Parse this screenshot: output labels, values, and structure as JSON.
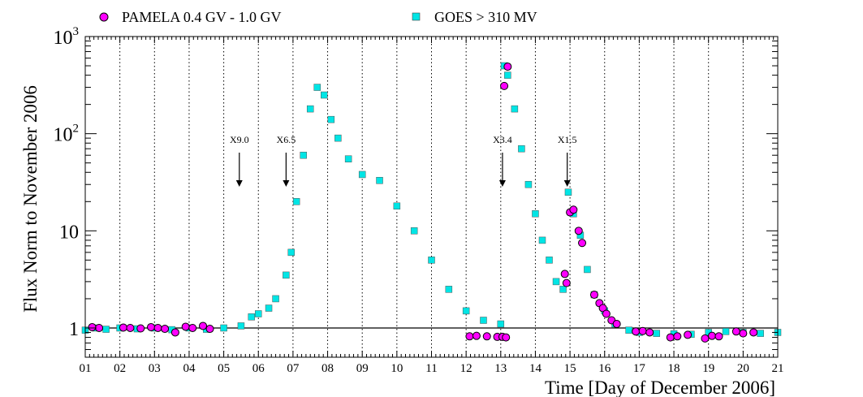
{
  "chart_data": {
    "type": "scatter",
    "xlabel": "Time [Day of December 2006]",
    "ylabel": "Flux Norm to November 2006",
    "yscale": "log",
    "xlim": [
      1,
      21
    ],
    "ylim": [
      0.5,
      1000
    ],
    "x_tick_labels": [
      "01",
      "02",
      "03",
      "04",
      "05",
      "06",
      "07",
      "08",
      "09",
      "10",
      "11",
      "12",
      "13",
      "14",
      "15",
      "16",
      "17",
      "18",
      "19",
      "20",
      "21"
    ],
    "y_tick_labels": [
      {
        "value": 1,
        "label": "1"
      },
      {
        "value": 10,
        "label": "10"
      },
      {
        "value": 100,
        "base": "10",
        "exp": "2"
      },
      {
        "value": 1000,
        "base": "10",
        "exp": "3"
      }
    ],
    "reference_line": 1,
    "legend": [
      {
        "label": "PAMELA 0.4 GV - 1.0 GV",
        "marker": "circle",
        "color": "#ff00ff"
      },
      {
        "label": "GOES > 310 MV",
        "marker": "square",
        "color": "#00e5e5"
      }
    ],
    "annotations": [
      {
        "label": "X9.0",
        "x": 5.45
      },
      {
        "label": "X6.5",
        "x": 6.8
      },
      {
        "label": "X3.4",
        "x": 13.05
      },
      {
        "label": "X1.5",
        "x": 14.92
      }
    ],
    "series": [
      {
        "name": "GOES > 310 MV",
        "marker": "square",
        "points": [
          [
            1.0,
            0.95
          ],
          [
            1.3,
            1.0
          ],
          [
            1.6,
            0.97
          ],
          [
            2.0,
            1.0
          ],
          [
            2.5,
            0.98
          ],
          [
            3.0,
            1.0
          ],
          [
            3.5,
            0.96
          ],
          [
            4.0,
            1.0
          ],
          [
            4.5,
            0.97
          ],
          [
            5.0,
            1.0
          ],
          [
            5.5,
            1.05
          ],
          [
            5.8,
            1.3
          ],
          [
            6.0,
            1.4
          ],
          [
            6.3,
            1.6
          ],
          [
            6.5,
            2.0
          ],
          [
            6.8,
            3.5
          ],
          [
            6.95,
            6.0
          ],
          [
            7.1,
            20
          ],
          [
            7.3,
            60
          ],
          [
            7.5,
            180
          ],
          [
            7.7,
            300
          ],
          [
            7.9,
            250
          ],
          [
            8.1,
            140
          ],
          [
            8.3,
            90
          ],
          [
            8.6,
            55
          ],
          [
            9.0,
            38
          ],
          [
            9.5,
            33
          ],
          [
            10.0,
            18
          ],
          [
            10.5,
            10
          ],
          [
            11.0,
            5
          ],
          [
            11.5,
            2.5
          ],
          [
            12.0,
            1.5
          ],
          [
            12.5,
            1.2
          ],
          [
            13.0,
            1.1
          ],
          [
            13.1,
            500
          ],
          [
            13.2,
            400
          ],
          [
            13.4,
            180
          ],
          [
            13.6,
            70
          ],
          [
            13.8,
            30
          ],
          [
            14.0,
            15
          ],
          [
            14.2,
            8
          ],
          [
            14.4,
            5
          ],
          [
            14.6,
            3
          ],
          [
            14.8,
            2.5
          ],
          [
            14.95,
            25
          ],
          [
            15.1,
            15
          ],
          [
            15.3,
            9
          ],
          [
            15.5,
            4
          ],
          [
            15.7,
            2.2
          ],
          [
            16.0,
            1.5
          ],
          [
            16.3,
            1.1
          ],
          [
            16.7,
            0.95
          ],
          [
            17.0,
            0.9
          ],
          [
            17.5,
            0.88
          ],
          [
            18.0,
            0.87
          ],
          [
            18.5,
            0.86
          ],
          [
            19.0,
            0.9
          ],
          [
            19.5,
            0.92
          ],
          [
            20.0,
            0.9
          ],
          [
            20.5,
            0.88
          ],
          [
            21.0,
            0.9
          ]
        ]
      },
      {
        "name": "PAMELA 0.4 GV - 1.0 GV",
        "marker": "circle",
        "points": [
          [
            1.2,
            1.02
          ],
          [
            1.4,
            1.0
          ],
          [
            2.1,
            1.01
          ],
          [
            2.3,
            1.0
          ],
          [
            2.6,
            0.99
          ],
          [
            2.9,
            1.02
          ],
          [
            3.1,
            1.0
          ],
          [
            3.3,
            0.98
          ],
          [
            3.6,
            0.9
          ],
          [
            3.9,
            1.03
          ],
          [
            4.1,
            1.0
          ],
          [
            4.4,
            1.05
          ],
          [
            4.6,
            0.98
          ],
          [
            12.1,
            0.82
          ],
          [
            12.3,
            0.83
          ],
          [
            12.6,
            0.82
          ],
          [
            12.9,
            0.81
          ],
          [
            13.05,
            0.81
          ],
          [
            13.15,
            0.8
          ],
          [
            13.1,
            310
          ],
          [
            13.2,
            490
          ],
          [
            14.85,
            3.6
          ],
          [
            14.9,
            2.9
          ],
          [
            15.0,
            15.5
          ],
          [
            15.1,
            16.5
          ],
          [
            15.25,
            10
          ],
          [
            15.35,
            7.5
          ],
          [
            15.7,
            2.2
          ],
          [
            15.85,
            1.8
          ],
          [
            15.95,
            1.6
          ],
          [
            16.05,
            1.4
          ],
          [
            16.2,
            1.2
          ],
          [
            16.35,
            1.1
          ],
          [
            16.9,
            0.92
          ],
          [
            17.1,
            0.93
          ],
          [
            17.3,
            0.9
          ],
          [
            17.9,
            0.8
          ],
          [
            18.1,
            0.82
          ],
          [
            18.4,
            0.85
          ],
          [
            18.9,
            0.78
          ],
          [
            19.1,
            0.83
          ],
          [
            19.3,
            0.82
          ],
          [
            19.8,
            0.92
          ],
          [
            20.0,
            0.88
          ],
          [
            20.3,
            0.9
          ]
        ]
      }
    ]
  }
}
